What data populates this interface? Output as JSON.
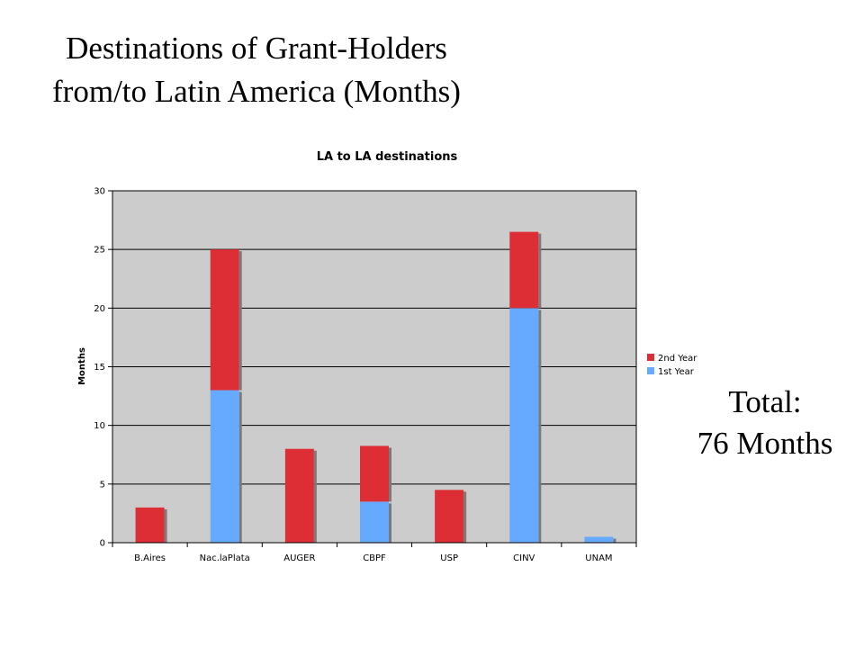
{
  "slide": {
    "title_line1": "Destinations of Grant-Holders",
    "title_line2": "from/to Latin America (Months)",
    "total_label": "Total:",
    "total_value": "76 Months"
  },
  "chart_data": {
    "type": "bar",
    "stacked": true,
    "title": "LA to LA destinations",
    "xlabel": "",
    "ylabel": "Months",
    "ylim": [
      0,
      30
    ],
    "yticks": [
      0,
      5,
      10,
      15,
      20,
      25,
      30
    ],
    "grid": true,
    "legend_position": "right",
    "categories": [
      "B.Aires",
      "Nac.laPlata",
      "AUGER",
      "CBPF",
      "USP",
      "CINV",
      "UNAM"
    ],
    "series": [
      {
        "name": "1st Year",
        "color": "#66aaff",
        "values": [
          0,
          13,
          0,
          3.5,
          0,
          20,
          0.5
        ]
      },
      {
        "name": "2nd Year",
        "color": "#dd2e35",
        "values": [
          3,
          12,
          8,
          4.75,
          4.5,
          6.5,
          0
        ]
      }
    ],
    "legend_order": [
      "2nd Year",
      "1st Year"
    ],
    "colors": {
      "plot_background": "#cccccc",
      "grid": "#000000"
    }
  }
}
